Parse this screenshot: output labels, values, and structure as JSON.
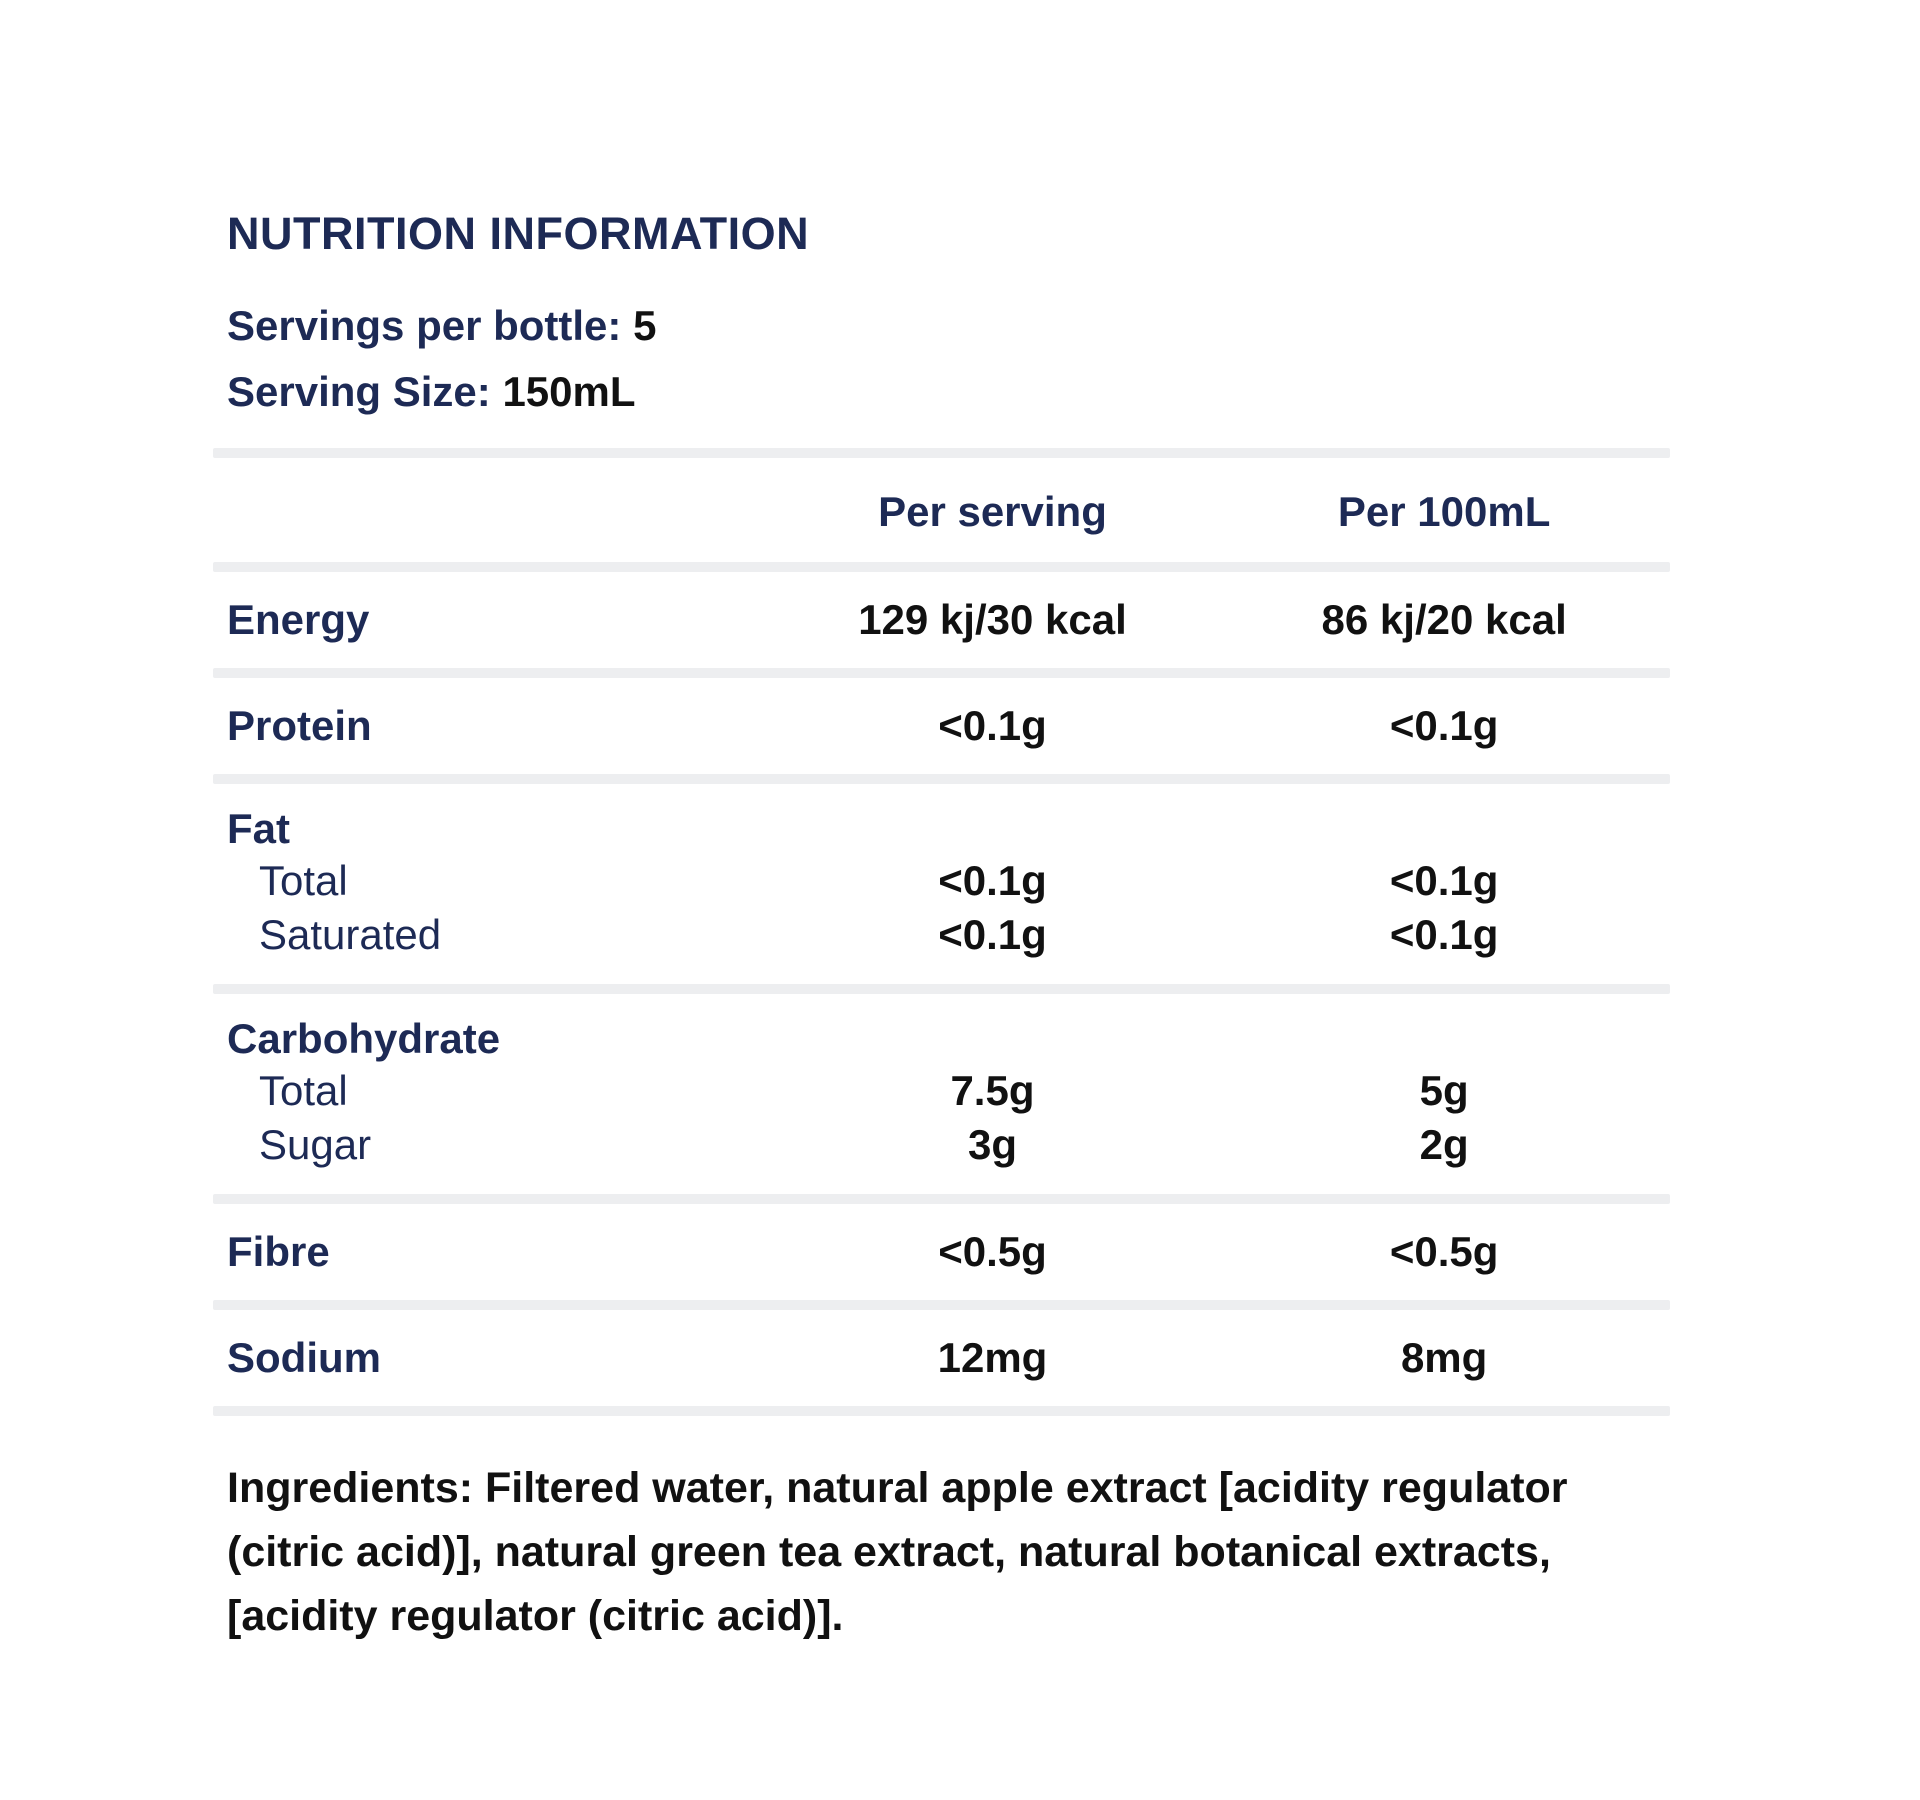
{
  "title": "NUTRITION INFORMATION",
  "meta": {
    "servings_label": "Servings per bottle:",
    "servings_value": "5",
    "serving_size_label": "Serving Size:",
    "serving_size_value": "150mL"
  },
  "table": {
    "columns": [
      "",
      "Per serving",
      "Per 100mL"
    ],
    "rows": [
      {
        "label": "Energy",
        "per_serving": "129 kj/30 kcal",
        "per_100ml": "86 kj/20 kcal"
      },
      {
        "label": "Protein",
        "per_serving": "<0.1g",
        "per_100ml": "<0.1g"
      },
      {
        "label": "Fat",
        "subrows": [
          {
            "label": "Total",
            "per_serving": "<0.1g",
            "per_100ml": "<0.1g"
          },
          {
            "label": "Saturated",
            "per_serving": "<0.1g",
            "per_100ml": "<0.1g"
          }
        ]
      },
      {
        "label": "Carbohydrate",
        "subrows": [
          {
            "label": "Total",
            "per_serving": "7.5g",
            "per_100ml": "5g"
          },
          {
            "label": "Sugar",
            "per_serving": "3g",
            "per_100ml": "2g"
          }
        ]
      },
      {
        "label": "Fibre",
        "per_serving": "<0.5g",
        "per_100ml": "<0.5g"
      },
      {
        "label": "Sodium",
        "per_serving": "12mg",
        "per_100ml": "8mg"
      }
    ]
  },
  "ingredients": "Ingredients: Filtered water, natural apple extract [acidity regulator (citric acid)], natural green tea extract, natural botanical extracts, [acidity regulator (citric acid)].",
  "colors": {
    "navy": "#1d2a55",
    "black": "#111111",
    "divider": "#edeef0",
    "background": "#ffffff"
  }
}
